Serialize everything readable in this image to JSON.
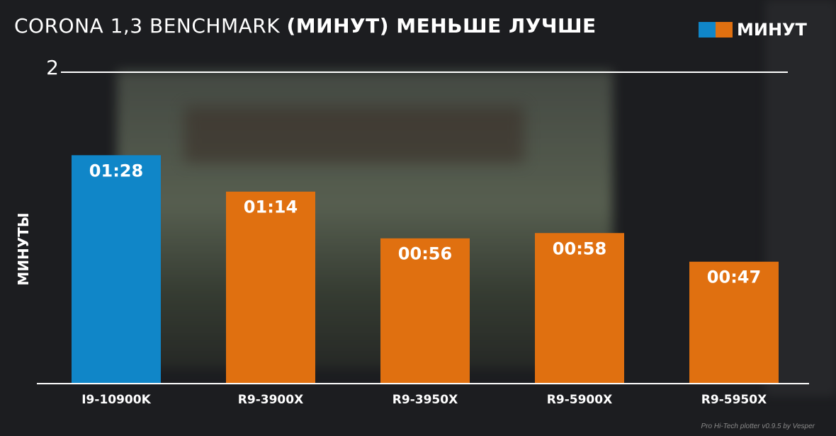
{
  "chart_data": {
    "type": "bar",
    "title": "CORONA 1,3 BENCHMARK",
    "title_suffix": "(МИНУТ) МЕНЬШЕ ЛУЧШЕ",
    "ylabel": "МИНУТЫ",
    "ylim": [
      0,
      2
    ],
    "yticks": [
      "2"
    ],
    "legend": {
      "label": "МИНУТ",
      "colors": [
        "#1086c8",
        "#e07010"
      ],
      "placement": "top-right"
    },
    "categories": [
      "I9-10900K",
      "R9-3900X",
      "R9-3950X",
      "R9-5900X",
      "R9-5950X"
    ],
    "values": [
      1.467,
      1.233,
      0.933,
      0.967,
      0.783
    ],
    "labels": [
      "01:28",
      "01:14",
      "00:56",
      "00:58",
      "00:47"
    ],
    "colors": [
      "#1086c8",
      "#e07010",
      "#e07010",
      "#e07010",
      "#e07010"
    ]
  },
  "footer": "Pro Hi-Tech plotter v0.9.5 by Vesper"
}
